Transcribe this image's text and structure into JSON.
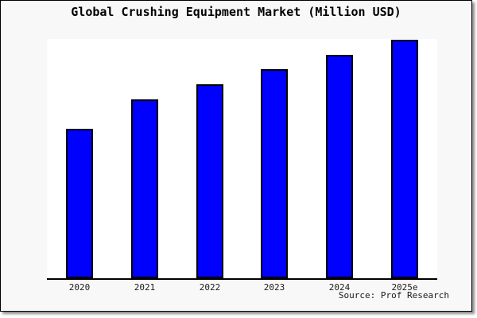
{
  "chart_data": {
    "type": "bar",
    "title": "Global Crushing Equipment Market (Million USD)",
    "categories": [
      "2020",
      "2021",
      "2022",
      "2023",
      "2024",
      "2025e"
    ],
    "values": [
      62.7,
      75.0,
      81.3,
      87.7,
      93.7,
      100.0
    ],
    "ylim": [
      0,
      100
    ],
    "xlabel": "",
    "ylabel": "",
    "grid": false,
    "legend": false,
    "y_axis_shown": false,
    "x_axis_line": true,
    "source_label": "Source: Prof Research",
    "colors": {
      "bar_fill": "#0000ff",
      "bar_border": "#000000",
      "canvas_bg": "#f8f8f8",
      "plot_bg": "#ffffff",
      "axis": "#000000",
      "text": "#000000"
    }
  }
}
